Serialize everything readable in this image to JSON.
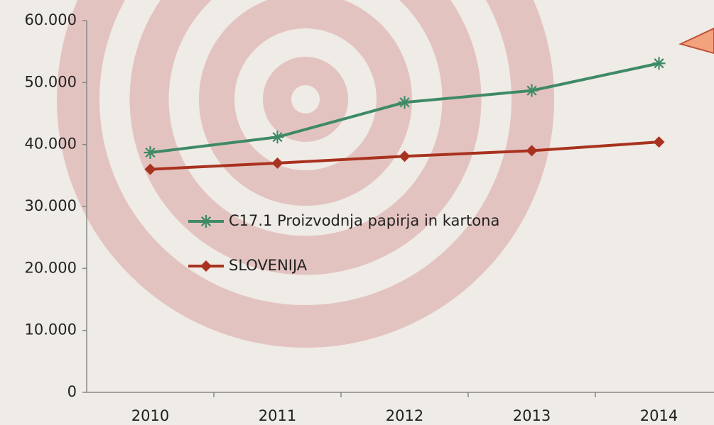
{
  "chart_data": {
    "type": "line",
    "categories": [
      "2010",
      "2011",
      "2012",
      "2013",
      "2014"
    ],
    "series": [
      {
        "name": "C17.1 Proizvodnja papirja in kartona",
        "color": "#3e8a66",
        "marker": "asterisk",
        "values": [
          38700,
          41200,
          46800,
          48700,
          53100
        ]
      },
      {
        "name": "SLOVENIJA",
        "color": "#a8321f",
        "marker": "diamond",
        "values": [
          36000,
          37000,
          38100,
          39000,
          40400
        ]
      }
    ],
    "ylim": [
      0,
      60000
    ],
    "yticks": [
      0,
      {
        "value": 10000,
        "label": "10.000"
      },
      {
        "value": 20000,
        "label": "20.000"
      },
      {
        "value": 30000,
        "label": "30.000"
      },
      {
        "value": 40000,
        "label": "40.000"
      },
      {
        "value": 50000,
        "label": "50.000"
      },
      {
        "value": 60000,
        "label": "60.000"
      }
    ],
    "grid": false
  }
}
